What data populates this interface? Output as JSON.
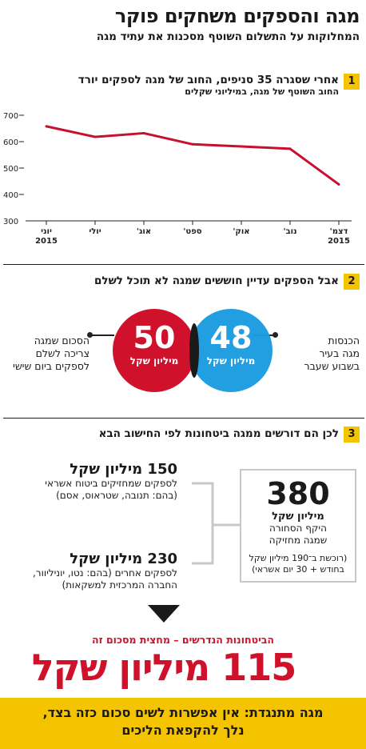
{
  "header": {
    "title": "מגה והספקים משחקים פוקר",
    "subtitle": "המחלוקות על התשלום השוטף מסכנות את עתיד מגה"
  },
  "section1": {
    "number": "1",
    "title": "אחרי שסגרה 35 סניפים, החוב של מגה לספקים יורד",
    "subtitle": "החוב השוטף של מגה, במיליוני שקלים"
  },
  "chart_data": {
    "type": "line",
    "x": [
      "יוני 2015",
      "יולי",
      "אוג'",
      "ספט'",
      "אוק'",
      "נוב'",
      "דצמ' 2015"
    ],
    "series": [
      {
        "values": [
          658,
          618,
          632,
          590,
          582,
          573,
          438
        ]
      }
    ],
    "ylim": [
      300,
      700
    ],
    "yticks": [
      300,
      400,
      500,
      600,
      700
    ],
    "xtick_lines": [
      [
        "יוני",
        "2015"
      ],
      [
        "יולי"
      ],
      [
        "אוג'"
      ],
      [
        "ספט'"
      ],
      [
        "אוק'"
      ],
      [
        "נוב'"
      ],
      [
        "דצמ'",
        "2015"
      ]
    ],
    "grid": false,
    "color": "#c8102e"
  },
  "section2": {
    "number": "2",
    "title": "אבל הספקים עדיין חוששים שמגה לא תוכל לשלם",
    "blue_circle": {
      "value": "48",
      "unit": "מיליון שקל",
      "color": "#1a9ce0"
    },
    "red_circle": {
      "value": "50",
      "unit": "מיליון שקל",
      "color": "#d0112b"
    },
    "right_text": [
      "הכנסות",
      "מגה בעיר",
      "בשבוע שעבר"
    ],
    "left_text": [
      "הסכום שמגה",
      "צריכה לשלם",
      "לספקים ביום שישי"
    ]
  },
  "section3": {
    "number": "3",
    "title": "לכן הם דורשים ממגה ביטחונות לפי החישוב הבא",
    "item1": {
      "amount": "150 מיליון שקל",
      "lines": [
        "לספקים שמחזיקים ביטוח אשראי",
        "(בהם: תנובה, שטראוס, אסם)"
      ]
    },
    "item2": {
      "amount": "230 מיליון שקל",
      "lines": [
        "לספקים אחרים (בהם: נטו, יוניליוור,",
        "החברה המרכזית למשקאות)"
      ]
    },
    "box": {
      "value": "380",
      "unit": "מיליון שקל",
      "lines": [
        "היקף הסחורה",
        "שמגה מחזיקה"
      ],
      "note": [
        "(רוכשת ב־190 מיליון שקל",
        "בחודש + 30 יום אשראי)"
      ]
    },
    "result_label": "הביטחונות הנדרשים – מחצית מסכום זה",
    "result_value": "115 מיליון שקל",
    "result_color": "#d0112b"
  },
  "footer": {
    "lines": [
      "מגה מתנגדת: אין אפשרות לשים סכום כזה בצד,",
      "נלך להקפאת הליכים"
    ],
    "color": "#f5c400"
  }
}
